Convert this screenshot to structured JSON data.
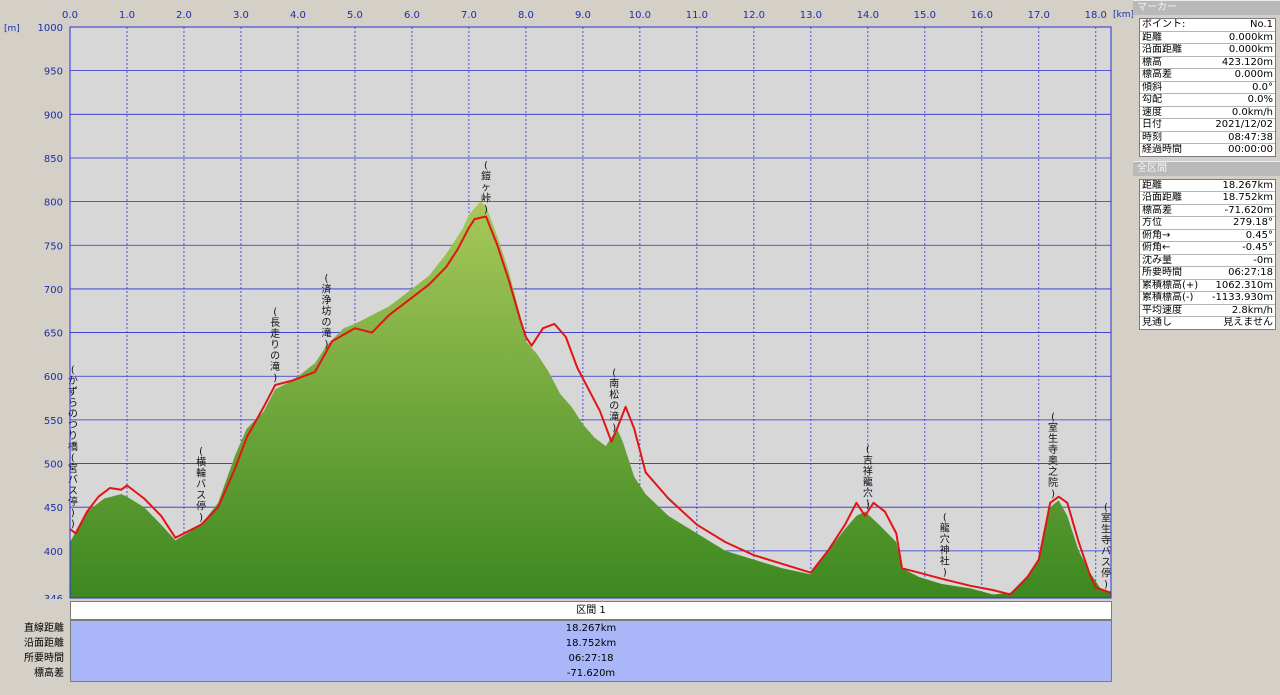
{
  "chart_data": {
    "type": "area",
    "x_unit": "[km]",
    "y_unit": "[m]",
    "xlim": [
      0,
      18.267
    ],
    "ylim": [
      346,
      1000
    ],
    "x_ticks": [
      "0.0",
      "1.0",
      "2.0",
      "3.0",
      "4.0",
      "5.0",
      "6.0",
      "7.0",
      "8.0",
      "9.0",
      "10.0",
      "11.0",
      "12.0",
      "13.0",
      "14.0",
      "15.0",
      "16.0",
      "17.0",
      "18.0"
    ],
    "y_ticks": [
      1000,
      950,
      900,
      850,
      800,
      750,
      700,
      650,
      600,
      550,
      500,
      450,
      400,
      346
    ],
    "grid": true,
    "series": [
      {
        "x": [
          0,
          0.3,
          0.6,
          0.9,
          1.0,
          1.3,
          1.6,
          1.85,
          2.0,
          2.3,
          2.6,
          2.9,
          3.1,
          3.4,
          3.6,
          3.9,
          4.1,
          4.3,
          4.5,
          4.8,
          5.0,
          5.3,
          5.6,
          6.0,
          6.3,
          6.6,
          6.9,
          7.0,
          7.2,
          7.3,
          7.5,
          7.7,
          7.9,
          8.0,
          8.2,
          8.4,
          8.6,
          8.8,
          9.0,
          9.2,
          9.4,
          9.6,
          9.7,
          9.9,
          10.1,
          10.5,
          11.0,
          11.5,
          12.0,
          12.5,
          13.0,
          13.3,
          13.6,
          13.8,
          13.95,
          14.2,
          14.5,
          14.6,
          14.9,
          15.3,
          15.8,
          16.2,
          16.5,
          16.8,
          17.0,
          17.2,
          17.35,
          17.5,
          17.7,
          17.9,
          18.1,
          18.267
        ],
        "values": [
          410,
          445,
          460,
          465,
          462,
          450,
          430,
          412,
          418,
          430,
          455,
          510,
          540,
          560,
          585,
          595,
          605,
          615,
          635,
          655,
          660,
          670,
          680,
          700,
          715,
          740,
          770,
          785,
          800,
          795,
          760,
          720,
          670,
          640,
          625,
          605,
          580,
          565,
          545,
          530,
          520,
          540,
          525,
          485,
          465,
          440,
          420,
          400,
          390,
          380,
          373,
          400,
          425,
          440,
          445,
          430,
          410,
          380,
          370,
          362,
          357,
          350,
          352,
          370,
          390,
          450,
          458,
          440,
          400,
          375,
          355,
          351
        ]
      },
      {
        "x": [
          0,
          0.1,
          0.3,
          0.5,
          0.7,
          0.9,
          1.0,
          1.3,
          1.6,
          1.85,
          2.0,
          2.3,
          2.6,
          2.9,
          3.1,
          3.4,
          3.6,
          3.9,
          4.1,
          4.3,
          4.6,
          5.0,
          5.3,
          5.6,
          6.0,
          6.3,
          6.6,
          6.8,
          7.0,
          7.1,
          7.3,
          7.5,
          7.7,
          7.9,
          8.0,
          8.1,
          8.3,
          8.5,
          8.7,
          8.9,
          9.1,
          9.3,
          9.5,
          9.6,
          9.75,
          9.9,
          10.1,
          10.5,
          11.0,
          11.5,
          12.0,
          12.5,
          13.0,
          13.3,
          13.6,
          13.8,
          13.95,
          14.1,
          14.3,
          14.5,
          14.6,
          14.9,
          15.3,
          15.8,
          16.2,
          16.5,
          16.8,
          17.0,
          17.2,
          17.35,
          17.5,
          17.7,
          17.9,
          18.0,
          18.267
        ],
        "values": [
          425,
          420,
          445,
          462,
          472,
          470,
          475,
          460,
          440,
          415,
          420,
          430,
          450,
          495,
          530,
          565,
          590,
          595,
          600,
          605,
          640,
          655,
          650,
          670,
          690,
          705,
          725,
          745,
          770,
          780,
          783,
          750,
          710,
          665,
          645,
          635,
          655,
          660,
          645,
          610,
          585,
          560,
          525,
          540,
          565,
          540,
          490,
          460,
          430,
          410,
          395,
          385,
          375,
          400,
          430,
          455,
          440,
          455,
          445,
          420,
          380,
          375,
          368,
          360,
          355,
          350,
          370,
          390,
          455,
          462,
          455,
          410,
          372,
          358,
          352
        ]
      }
    ],
    "annotations": [
      {
        "x": 0.05,
        "text": "(かずらのつり橋(宮バス停))"
      },
      {
        "x": 2.3,
        "text": "(横輪バス停)"
      },
      {
        "x": 3.6,
        "text": "(長走りの滝)"
      },
      {
        "x": 4.5,
        "text": "(済浄坊の滝)"
      },
      {
        "x": 7.3,
        "text": "(鎧ヶ峠)"
      },
      {
        "x": 9.55,
        "text": "(南松の滝)"
      },
      {
        "x": 14.0,
        "text": "(吉祥龍穴)"
      },
      {
        "x": 15.35,
        "text": "(龍穴神社)"
      },
      {
        "x": 17.25,
        "text": "(室生寺奥之院)"
      },
      {
        "x": 18.2,
        "text": "(室生寺バス停)"
      }
    ],
    "colors": {
      "area_top": "#9cbf4a",
      "area_bottom": "#3e8a1f",
      "line": "#e11515",
      "plot_bg": "#d7d7d7",
      "grid": "#2b2fd1",
      "axis_text": "#1a2fa8"
    }
  },
  "marker": {
    "title": "マーカー",
    "rows": [
      {
        "label": "ポイント:",
        "value": "No.1"
      },
      {
        "label": "距離",
        "value": "0.000km"
      },
      {
        "label": "沿面距離",
        "value": "0.000km"
      },
      {
        "label": "標高",
        "value": "423.120m"
      },
      {
        "label": "標高差",
        "value": "0.000m"
      },
      {
        "label": "傾斜",
        "value": "0.0°"
      },
      {
        "label": "勾配",
        "value": "0.0%"
      },
      {
        "label": "速度",
        "value": "0.0km/h"
      },
      {
        "label": "日付",
        "value": "2021/12/02"
      },
      {
        "label": "時刻",
        "value": "08:47:38"
      },
      {
        "label": "経過時間",
        "value": "00:00:00"
      }
    ]
  },
  "total": {
    "title": "全区間",
    "rows": [
      {
        "label": "距離",
        "value": "18.267km"
      },
      {
        "label": "沿面距離",
        "value": "18.752km"
      },
      {
        "label": "標高差",
        "value": "-71.620m"
      },
      {
        "label": "方位",
        "value": "279.18°"
      },
      {
        "label": "俯角→",
        "value": "0.45°"
      },
      {
        "label": "俯角←",
        "value": "-0.45°"
      },
      {
        "label": "沈み量",
        "value": "-0m"
      },
      {
        "label": "所要時間",
        "value": "06:27:18"
      },
      {
        "label": "累積標高(+)",
        "value": "1062.310m"
      },
      {
        "label": "累積標高(-)",
        "value": "-1133.930m"
      },
      {
        "label": "平均速度",
        "value": "2.8km/h"
      },
      {
        "label": "見通し",
        "value": "見えません"
      }
    ]
  },
  "segment": {
    "header": "区間 1",
    "labels": [
      "直線距離",
      "沿面距離",
      "所要時間",
      "標高差"
    ],
    "values": [
      "18.267km",
      "18.752km",
      "06:27:18",
      "-71.620m"
    ]
  }
}
